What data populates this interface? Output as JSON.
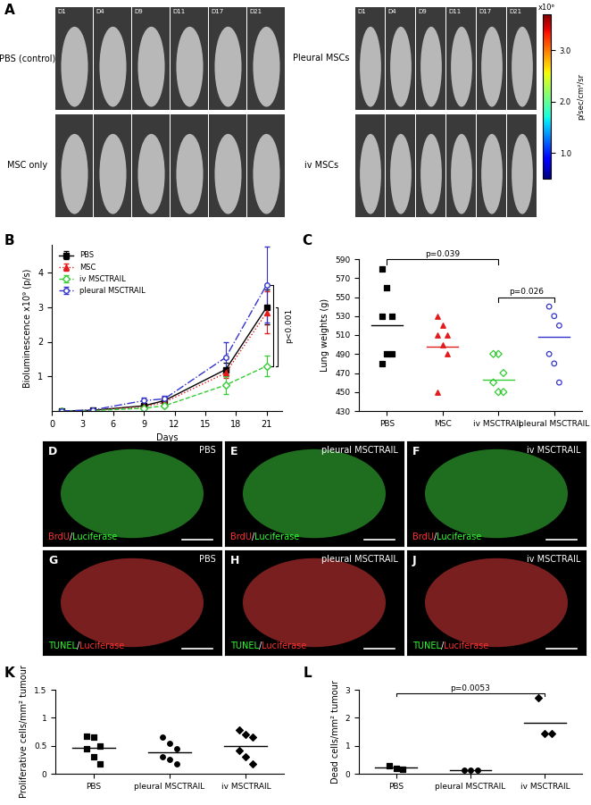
{
  "chart_data": [
    {
      "panel": "B",
      "type": "line",
      "x_label": "Days",
      "y_label": "Bioluminescence x10⁹ (p/s)",
      "x": [
        1,
        4,
        9,
        11,
        17,
        21
      ],
      "xlim": [
        0,
        22.5
      ],
      "xticks": [
        0,
        3,
        6,
        9,
        12,
        15,
        18,
        21
      ],
      "ylim": [
        0,
        4.8
      ],
      "yticks": [
        1,
        2,
        3,
        4
      ],
      "legend": "upper left",
      "series": [
        {
          "name": "PBS",
          "color": "#000000",
          "marker": "square",
          "line_style": "solid",
          "values": [
            0,
            0.02,
            0.15,
            0.3,
            1.2,
            3.0
          ],
          "errors": [
            0,
            0.01,
            0.05,
            0.1,
            0.2,
            0.5
          ]
        },
        {
          "name": "MSC",
          "color": "#e31a1c",
          "marker": "triangle",
          "line_style": "dotted",
          "values": [
            0,
            0.02,
            0.12,
            0.25,
            1.1,
            2.85
          ],
          "errors": [
            0,
            0.01,
            0.05,
            0.1,
            0.15,
            0.6
          ]
        },
        {
          "name": "iv MSCTRAIL",
          "color": "#33cc33",
          "marker": "open-diamond",
          "line_style": "dashed",
          "values": [
            0,
            0.01,
            0.08,
            0.15,
            0.75,
            1.3
          ],
          "errors": [
            0,
            0.01,
            0.03,
            0.05,
            0.25,
            0.3
          ]
        },
        {
          "name": "pleural MSCTRAIL",
          "color": "#3333cc",
          "marker": "open-circle",
          "line_style": "dashdot",
          "values": [
            0,
            0.03,
            0.3,
            0.35,
            1.55,
            3.65
          ],
          "errors": [
            0,
            0.01,
            0.1,
            0.1,
            0.45,
            1.1
          ]
        }
      ],
      "comparisons": [
        {
          "between": [
            "pleural MSCTRAIL",
            "iv MSCTRAIL"
          ],
          "label": "p<0.001"
        },
        {
          "between": [
            "PBS",
            "iv MSCTRAIL"
          ],
          "label": ""
        }
      ]
    },
    {
      "panel": "C",
      "type": "scatter",
      "y_label": "Lung weights (g)",
      "categories": [
        "PBS",
        "MSC",
        "iv MSCTRAIL",
        "pleural MSCTRAIL"
      ],
      "ylim": [
        430,
        590
      ],
      "yticks": [
        430,
        450,
        470,
        490,
        510,
        530,
        550,
        570,
        590
      ],
      "groups": [
        {
          "color": "#000000",
          "marker": "square",
          "values": [
            580,
            560,
            530,
            530,
            490,
            490,
            480
          ],
          "mean": 520
        },
        {
          "color": "#e31a1c",
          "marker": "triangle",
          "values": [
            530,
            520,
            510,
            510,
            500,
            490,
            450
          ],
          "mean": 498
        },
        {
          "color": "#33cc33",
          "marker": "open-diamond",
          "values": [
            490,
            490,
            470,
            460,
            450,
            450
          ],
          "mean": 463
        },
        {
          "color": "#3333cc",
          "marker": "open-circle",
          "values": [
            540,
            530,
            520,
            490,
            480,
            460
          ],
          "mean": 508
        }
      ],
      "comparisons": [
        {
          "between": [
            "PBS",
            "iv MSCTRAIL"
          ],
          "label": "p=0.039"
        },
        {
          "between": [
            "iv MSCTRAIL",
            "pleural MSCTRAIL"
          ],
          "label": "p=0.026"
        }
      ]
    },
    {
      "panel": "K",
      "type": "scatter",
      "y_label": "Proliferative cells/mm² tumour",
      "categories": [
        "PBS",
        "pleural MSCTRAIL",
        "iv MSCTRAIL"
      ],
      "ylim": [
        0,
        1.5
      ],
      "yticks": [
        0,
        0.5,
        1,
        1.5
      ],
      "groups": [
        {
          "color": "#000000",
          "marker": "square",
          "values": [
            0.67,
            0.65,
            0.5,
            0.45,
            0.3,
            0.17
          ],
          "mean": 0.47
        },
        {
          "color": "#000000",
          "marker": "circle",
          "values": [
            0.65,
            0.55,
            0.45,
            0.3,
            0.25,
            0.17
          ],
          "mean": 0.39
        },
        {
          "color": "#000000",
          "marker": "diamond",
          "values": [
            0.78,
            0.7,
            0.65,
            0.42,
            0.3,
            0.17
          ],
          "mean": 0.5
        }
      ],
      "comparisons": []
    },
    {
      "panel": "L",
      "type": "scatter",
      "y_label": "Dead cells/mm² tumour",
      "categories": [
        "PBS",
        "pleural MSCTRAIL",
        "iv MSCTRAIL"
      ],
      "ylim": [
        0,
        3
      ],
      "yticks": [
        0,
        1,
        2,
        3
      ],
      "groups": [
        {
          "color": "#000000",
          "marker": "square",
          "values": [
            0.3,
            0.2,
            0.15
          ],
          "mean": 0.23
        },
        {
          "color": "#000000",
          "marker": "circle",
          "values": [
            0.12,
            0.12,
            0.12
          ],
          "mean": 0.12
        },
        {
          "color": "#000000",
          "marker": "diamond",
          "values": [
            2.7,
            1.45,
            1.45
          ],
          "mean": 1.83
        }
      ],
      "comparisons": [
        {
          "between": [
            "PBS",
            "iv MSCTRAIL"
          ],
          "label": "p=0.0053"
        }
      ]
    }
  ],
  "image_panels": {
    "A": {
      "letter": "A",
      "days": [
        "D1",
        "D4",
        "D9",
        "D11",
        "D17",
        "D21"
      ],
      "image_blocks": [
        [
          "PBS (control)",
          "MSC only"
        ],
        [
          "Pleural MSCs",
          "iv MSCs"
        ]
      ],
      "colorbar": {
        "range": [
          0.5,
          3.7
        ],
        "ticks": [
          {
            "value": 1,
            "label": "1.0"
          },
          {
            "value": 2,
            "label": "2.0"
          },
          {
            "value": 3,
            "label": "3.0"
          }
        ],
        "multiplier": "x10⁶",
        "unit": "p/sec/cm²/sr"
      }
    },
    "micrographs": [
      {
        "letter": "D",
        "group": "PBS",
        "stains": [
          {
            "text": "BrdU",
            "color": "#ff3030"
          },
          {
            "text": "/",
            "color": "#ffffff"
          },
          {
            "text": "Luciferase",
            "color": "#30ff30"
          }
        ]
      },
      {
        "letter": "E",
        "group": "pleural MSCTRAIL",
        "stains": [
          {
            "text": "BrdU",
            "color": "#ff3030"
          },
          {
            "text": "/",
            "color": "#ffffff"
          },
          {
            "text": "Luciferase",
            "color": "#30ff30"
          }
        ]
      },
      {
        "letter": "F",
        "group": "iv MSCTRAIL",
        "stains": [
          {
            "text": "BrdU",
            "color": "#ff3030"
          },
          {
            "text": "/",
            "color": "#ffffff"
          },
          {
            "text": "Luciferase",
            "color": "#30ff30"
          }
        ]
      },
      {
        "letter": "G",
        "group": "PBS",
        "stains": [
          {
            "text": "TUNEL",
            "color": "#30ff30"
          },
          {
            "text": "/",
            "color": "#ffffff"
          },
          {
            "text": "Luciferase",
            "color": "#ff3030"
          }
        ]
      },
      {
        "letter": "H",
        "group": "pleural MSCTRAIL",
        "stains": [
          {
            "text": "TUNEL",
            "color": "#30ff30"
          },
          {
            "text": "/",
            "color": "#ffffff"
          },
          {
            "text": "Luciferase",
            "color": "#ff3030"
          }
        ]
      },
      {
        "letter": "J",
        "group": "iv MSCTRAIL",
        "stains": [
          {
            "text": "TUNEL",
            "color": "#30ff30"
          },
          {
            "text": "/",
            "color": "#ffffff"
          },
          {
            "text": "Luciferase",
            "color": "#ff3030"
          }
        ]
      }
    ]
  }
}
